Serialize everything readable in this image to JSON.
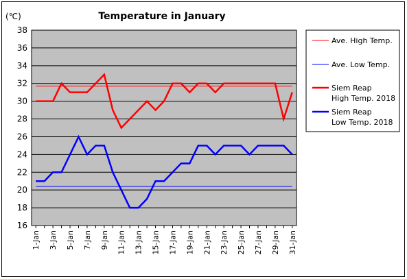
{
  "chart_data": {
    "type": "line",
    "title": "Temperature in January",
    "unit_label": "(℃)",
    "ylim": [
      16,
      38
    ],
    "yticks": [
      16,
      18,
      20,
      22,
      24,
      26,
      28,
      30,
      32,
      34,
      36,
      38
    ],
    "grid": true,
    "legend_position": "right",
    "days": [
      "1-Jan",
      "2-Jan",
      "3-Jan",
      "4-Jan",
      "5-Jan",
      "6-Jan",
      "7-Jan",
      "8-Jan",
      "9-Jan",
      "10-Jan",
      "11-Jan",
      "12-Jan",
      "13-Jan",
      "14-Jan",
      "15-Jan",
      "16-Jan",
      "17-Jan",
      "18-Jan",
      "19-Jan",
      "20-Jan",
      "21-Jan",
      "22-Jan",
      "23-Jan",
      "24-Jan",
      "25-Jan",
      "26-Jan",
      "27-Jan",
      "28-Jan",
      "29-Jan",
      "30-Jan",
      "31-Jan"
    ],
    "shown_tick_labels": [
      "1-Jan",
      "3-Jan",
      "5-Jan",
      "7-Jan",
      "9-Jan",
      "11-Jan",
      "13-Jan",
      "15-Jan",
      "17-Jan",
      "19-Jan",
      "21-Jan",
      "23-Jan",
      "25-Jan",
      "27-Jan",
      "29-Jan",
      "31-Jan"
    ],
    "series": [
      {
        "name": "Ave. High Temp.",
        "color": "#ff0000",
        "style": "thin",
        "values": [
          31.7,
          31.7,
          31.7,
          31.7,
          31.7,
          31.7,
          31.7,
          31.7,
          31.7,
          31.7,
          31.7,
          31.7,
          31.7,
          31.7,
          31.7,
          31.7,
          31.7,
          31.7,
          31.7,
          31.7,
          31.7,
          31.7,
          31.7,
          31.7,
          31.7,
          31.7,
          31.7,
          31.7,
          31.7,
          31.7,
          31.7
        ]
      },
      {
        "name": "Ave. Low Temp.",
        "color": "#0000ff",
        "style": "thin",
        "values": [
          20.4,
          20.4,
          20.4,
          20.4,
          20.4,
          20.4,
          20.4,
          20.4,
          20.4,
          20.4,
          20.4,
          20.4,
          20.4,
          20.4,
          20.4,
          20.4,
          20.4,
          20.4,
          20.4,
          20.4,
          20.4,
          20.4,
          20.4,
          20.4,
          20.4,
          20.4,
          20.4,
          20.4,
          20.4,
          20.4,
          20.4
        ]
      },
      {
        "name": "Siem Reap High Temp. 2018",
        "legend_lines": [
          "Siem Reap",
          "High Temp. 2018"
        ],
        "color": "#ff0000",
        "style": "thick",
        "values": [
          30,
          30,
          30,
          32,
          31,
          31,
          31,
          32,
          33,
          29,
          27,
          28,
          29,
          30,
          29,
          30,
          32,
          32,
          31,
          32,
          32,
          31,
          32,
          32,
          32,
          32,
          32,
          32,
          32,
          28,
          31
        ]
      },
      {
        "name": "Siem Reap Low Temp. 2018",
        "legend_lines": [
          "Siem Reap",
          "Low Temp. 2018"
        ],
        "color": "#0000ff",
        "style": "thick",
        "values": [
          21,
          21,
          22,
          22,
          24,
          26,
          24,
          25,
          25,
          22,
          20,
          18,
          18,
          19,
          21,
          21,
          22,
          23,
          23,
          25,
          25,
          24,
          25,
          25,
          25,
          24,
          25,
          25,
          25,
          25,
          24
        ]
      }
    ]
  }
}
